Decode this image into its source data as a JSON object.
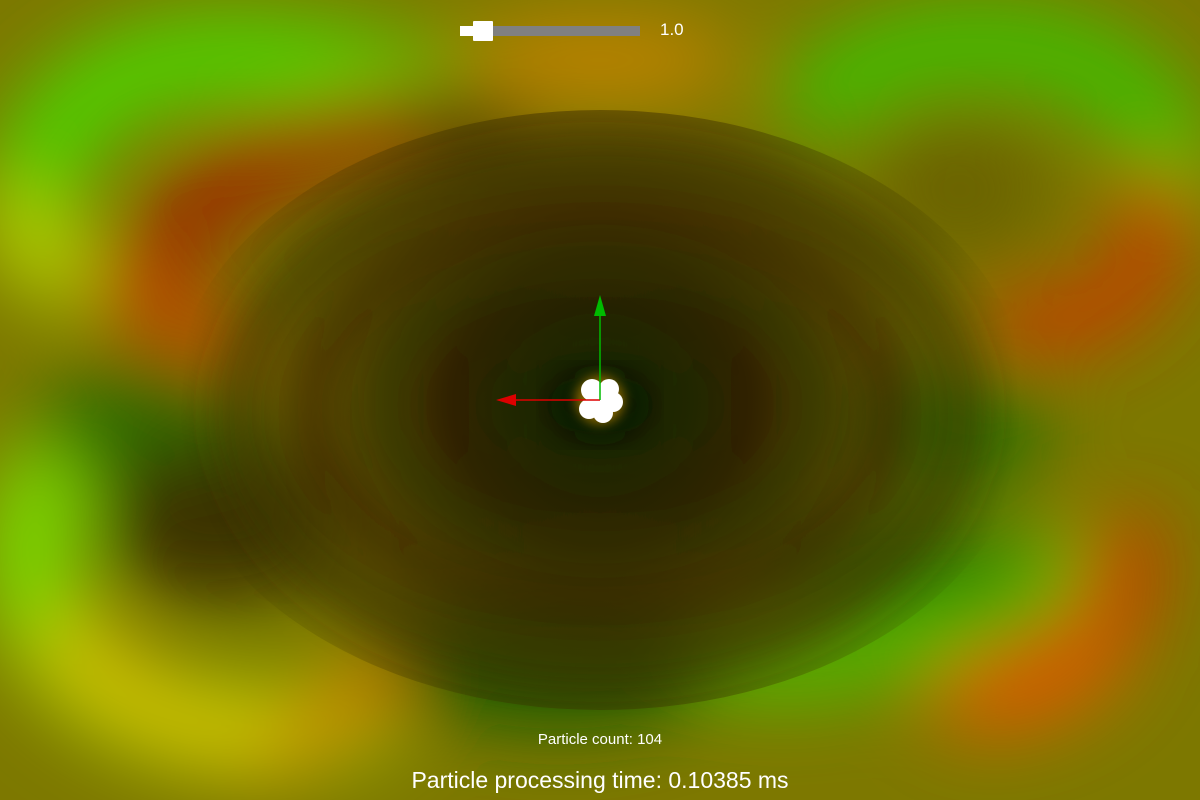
{
  "slider": {
    "value_label": "1.0",
    "fraction": 0.08,
    "track_color": "#808080",
    "thumb_color": "#ffffff"
  },
  "stats": {
    "particle_count_label": "Particle count: 104",
    "processing_time_label": "Particle processing time: 0.10385 ms"
  },
  "axes_gizmo": {
    "x_axis_color": "#dd0000",
    "y_axis_color": "#00bb00",
    "x_axis_icon": "red-arrow-left",
    "y_axis_icon": "green-arrow-up"
  },
  "colors": {
    "background_base": "#7a7a00",
    "text": "#ffffff",
    "emitter_glow": "#ffffff"
  }
}
